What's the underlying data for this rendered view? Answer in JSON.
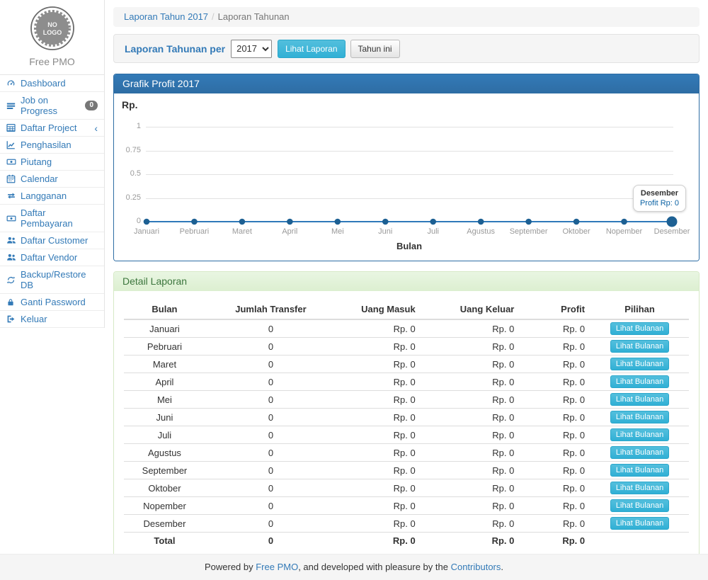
{
  "app": {
    "brand": "Free PMO",
    "logo_line1": "NO",
    "logo_line2": "LOGO"
  },
  "sidebar": {
    "items": [
      {
        "icon": "dashboard-icon",
        "label": "Dashboard"
      },
      {
        "icon": "tasks-icon",
        "label": "Job on Progress",
        "badge": "0"
      },
      {
        "icon": "table-icon",
        "label": "Daftar Project",
        "chevron": "‹"
      },
      {
        "icon": "line-chart-icon",
        "label": "Penghasilan"
      },
      {
        "icon": "money-icon",
        "label": "Piutang"
      },
      {
        "icon": "calendar-icon",
        "label": "Calendar"
      },
      {
        "icon": "retweet-icon",
        "label": "Langganan"
      },
      {
        "icon": "money-icon",
        "label": "Daftar Pembayaran"
      },
      {
        "icon": "users-icon",
        "label": "Daftar Customer"
      },
      {
        "icon": "users-icon",
        "label": "Daftar Vendor"
      },
      {
        "icon": "refresh-icon",
        "label": "Backup/Restore DB"
      },
      {
        "icon": "lock-icon",
        "label": "Ganti Password"
      },
      {
        "icon": "sign-out-icon",
        "label": "Keluar"
      }
    ]
  },
  "breadcrumb": {
    "link": "Laporan Tahun 2017",
    "separator": "/",
    "current": "Laporan Tahunan"
  },
  "filter": {
    "label": "Laporan Tahunan per",
    "year_selected": "2017",
    "view_button": "Lihat Laporan",
    "this_year_button": "Tahun ini"
  },
  "chart_panel": {
    "title": "Grafik Profit 2017"
  },
  "chart_data": {
    "type": "line",
    "title": "Grafik Profit 2017",
    "categories": [
      "Januari",
      "Pebruari",
      "Maret",
      "April",
      "Mei",
      "Juni",
      "Juli",
      "Agustus",
      "September",
      "Oktober",
      "Nopember",
      "Desember"
    ],
    "series": [
      {
        "name": "Profit",
        "values": [
          0,
          0,
          0,
          0,
          0,
          0,
          0,
          0,
          0,
          0,
          0,
          0
        ]
      }
    ],
    "ylabel": "Rp.",
    "xlabel": "Bulan",
    "yticks": [
      "1",
      "0.75",
      "0.5",
      "0.25",
      "0"
    ],
    "ylim": [
      0,
      1
    ],
    "grid": true,
    "legend_position": "none",
    "tooltip": {
      "title": "Desember",
      "value": "Profit Rp: 0"
    },
    "line_color": "#2f79b9",
    "point_color": "#1d6093"
  },
  "detail_panel": {
    "title": "Detail Laporan"
  },
  "table": {
    "headers": [
      "Bulan",
      "Jumlah Transfer",
      "Uang Masuk",
      "Uang Keluar",
      "Profit",
      "Pilihan"
    ],
    "action_label": "Lihat Bulanan",
    "rows": [
      [
        "Januari",
        "0",
        "Rp. 0",
        "Rp. 0",
        "Rp. 0"
      ],
      [
        "Pebruari",
        "0",
        "Rp. 0",
        "Rp. 0",
        "Rp. 0"
      ],
      [
        "Maret",
        "0",
        "Rp. 0",
        "Rp. 0",
        "Rp. 0"
      ],
      [
        "April",
        "0",
        "Rp. 0",
        "Rp. 0",
        "Rp. 0"
      ],
      [
        "Mei",
        "0",
        "Rp. 0",
        "Rp. 0",
        "Rp. 0"
      ],
      [
        "Juni",
        "0",
        "Rp. 0",
        "Rp. 0",
        "Rp. 0"
      ],
      [
        "Juli",
        "0",
        "Rp. 0",
        "Rp. 0",
        "Rp. 0"
      ],
      [
        "Agustus",
        "0",
        "Rp. 0",
        "Rp. 0",
        "Rp. 0"
      ],
      [
        "September",
        "0",
        "Rp. 0",
        "Rp. 0",
        "Rp. 0"
      ],
      [
        "Oktober",
        "0",
        "Rp. 0",
        "Rp. 0",
        "Rp. 0"
      ],
      [
        "Nopember",
        "0",
        "Rp. 0",
        "Rp. 0",
        "Rp. 0"
      ],
      [
        "Desember",
        "0",
        "Rp. 0",
        "Rp. 0",
        "Rp. 0"
      ]
    ],
    "total_row": [
      "Total",
      "0",
      "Rp. 0",
      "Rp. 0",
      "Rp. 0"
    ]
  },
  "footer": {
    "text_before": "Powered by ",
    "link1": "Free PMO",
    "text_middle": ", and developed with pleasure by the ",
    "link2": "Contributors",
    "text_after": "."
  },
  "colors": {
    "accent": "#337ab7",
    "panel_primary": "#2e6da4",
    "info_button": "#31b0d5",
    "success_heading_bg": "#dff0d8",
    "success_heading_text": "#3c763d",
    "chart_line": "#2f79b9",
    "badge_bg": "#777777"
  }
}
